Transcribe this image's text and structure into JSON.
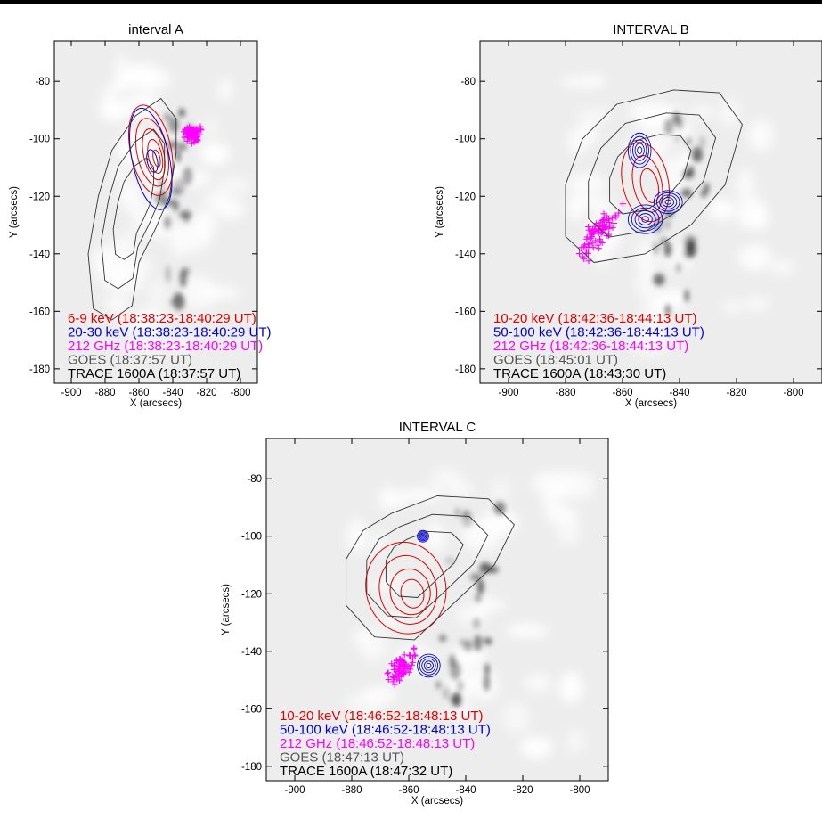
{
  "colors": {
    "red": "#e00000",
    "blue": "#0000d8",
    "magenta": "#ff00ff",
    "goes_gray": "#555555",
    "trace_black": "#000000"
  },
  "chart_data": [
    {
      "type": "contour-map",
      "title": "interval A",
      "xlabel": "X (arcsecs)",
      "ylabel": "Y (arcsecs)",
      "xlim": [
        -910,
        -790
      ],
      "ylim": [
        -185,
        -66
      ],
      "xticks": [
        -900,
        -880,
        -860,
        -840,
        -820,
        -800
      ],
      "yticks": [
        -80,
        -100,
        -120,
        -140,
        -160,
        -180
      ],
      "legend": [
        {
          "text": "6-9 keV (18:38:23-18:40:29 UT)",
          "color": "red"
        },
        {
          "text": "20-30 keV (18:38:23-18:40:29 UT)",
          "color": "blue"
        },
        {
          "text": "212 GHz (18:38:23-18:40:29 UT)",
          "color": "magenta"
        },
        {
          "text": "GOES (18:37:57 UT)",
          "color": "goes_gray"
        },
        {
          "text": "TRACE 1600A (18:37:57 UT)",
          "color": "trace_black"
        }
      ],
      "series": [
        {
          "name": "6-9 keV",
          "color": "red",
          "kind": "contours",
          "center": [
            -853,
            -104
          ],
          "radii": [
            [
              12,
              16
            ],
            [
              9,
              12
            ],
            [
              6,
              9
            ],
            [
              4,
              6
            ],
            [
              2,
              3
            ]
          ]
        },
        {
          "name": "20-30 keV",
          "color": "blue",
          "kind": "contours",
          "center": [
            -853,
            -107
          ],
          "radii": [
            [
              11,
              18
            ],
            [
              3,
              4
            ]
          ]
        },
        {
          "name": "212 GHz",
          "color": "magenta",
          "kind": "scatter",
          "center": [
            -828,
            -98
          ],
          "spread": [
            8,
            4
          ],
          "n": 90
        },
        {
          "name": "GOES",
          "color": "goes_gray",
          "kind": "contours",
          "outline": [
            [
              -862,
              -92
            ],
            [
              -847,
              -86
            ],
            [
              -838,
              -93
            ],
            [
              -838,
              -105
            ],
            [
              -842,
              -120
            ],
            [
              -850,
              -131
            ],
            [
              -860,
              -143
            ],
            [
              -864,
              -158
            ],
            [
              -876,
              -163
            ],
            [
              -887,
              -159
            ],
            [
              -890,
              -140
            ],
            [
              -884,
              -120
            ],
            [
              -876,
              -104
            ]
          ]
        },
        {
          "name": "TRACE 1600A",
          "color": "trace_black",
          "kind": "image"
        }
      ]
    },
    {
      "type": "contour-map",
      "title": "INTERVAL B",
      "xlabel": "X (arcsecs)",
      "ylabel": "Y (arcsecs)",
      "xlim": [
        -910,
        -790
      ],
      "ylim": [
        -185,
        -66
      ],
      "xticks": [
        -900,
        -880,
        -860,
        -840,
        -820,
        -800
      ],
      "yticks": [
        -80,
        -100,
        -120,
        -140,
        -160,
        -180
      ],
      "legend": [
        {
          "text": "10-20 keV (18:42:36-18:44:13 UT)",
          "color": "red"
        },
        {
          "text": "50-100 keV (18:42:36-18:44:13 UT)",
          "color": "blue"
        },
        {
          "text": "212 GHz (18:42:36-18:44:13 UT)",
          "color": "magenta"
        },
        {
          "text": "GOES (18:45:01 UT)",
          "color": "goes_gray"
        },
        {
          "text": "TRACE 1600A (18:43:30 UT)",
          "color": "trace_black"
        }
      ],
      "series": [
        {
          "name": "10-20 keV",
          "color": "red",
          "kind": "contours",
          "center": [
            -852,
            -115
          ],
          "radii": [
            [
              8,
              14
            ],
            [
              5,
              10
            ],
            [
              3,
              6
            ]
          ]
        },
        {
          "name": "50-100 keV",
          "color": "blue",
          "kind": "contours",
          "sources": [
            [
              -854,
              -104,
              4,
              6
            ],
            [
              -852,
              -128,
              6,
              5
            ],
            [
              -844,
              -122,
              5,
              4
            ]
          ]
        },
        {
          "name": "212 GHz",
          "color": "magenta",
          "kind": "scatter",
          "center": [
            -868,
            -133
          ],
          "spread": [
            10,
            9
          ],
          "n": 75
        },
        {
          "name": "GOES",
          "color": "goes_gray",
          "kind": "contours",
          "outline": [
            [
              -862,
              -88
            ],
            [
              -842,
              -83
            ],
            [
              -826,
              -84
            ],
            [
              -818,
              -95
            ],
            [
              -824,
              -116
            ],
            [
              -836,
              -130
            ],
            [
              -852,
              -140
            ],
            [
              -870,
              -143
            ],
            [
              -880,
              -134
            ],
            [
              -880,
              -116
            ],
            [
              -874,
              -100
            ]
          ]
        },
        {
          "name": "TRACE 1600A",
          "color": "trace_black",
          "kind": "image"
        }
      ]
    },
    {
      "type": "contour-map",
      "title": "INTERVAL C",
      "xlabel": "X (arcsecs)",
      "ylabel": "Y (arcsecs)",
      "xlim": [
        -910,
        -790
      ],
      "ylim": [
        -185,
        -66
      ],
      "xticks": [
        -900,
        -880,
        -860,
        -840,
        -820,
        -800
      ],
      "yticks": [
        -80,
        -100,
        -120,
        -140,
        -160,
        -180
      ],
      "legend": [
        {
          "text": "10-20 keV (18:46:52-18:48:13 UT)",
          "color": "red"
        },
        {
          "text": "50-100 keV (18:46:52-18:48:13 UT)",
          "color": "blue"
        },
        {
          "text": "212 GHz (18:46:52-18:48:13 UT)",
          "color": "magenta"
        },
        {
          "text": "GOES (18:47:13 UT)",
          "color": "goes_gray"
        },
        {
          "text": "TRACE 1600A (18:47:32 UT)",
          "color": "trace_black"
        }
      ],
      "series": [
        {
          "name": "10-20 keV",
          "color": "red",
          "kind": "contours",
          "center": [
            -861,
            -118
          ],
          "radii": [
            [
              14,
              16
            ],
            [
              10,
              12
            ],
            [
              7,
              8
            ],
            [
              4,
              5
            ]
          ]
        },
        {
          "name": "50-100 keV",
          "color": "blue",
          "kind": "contours",
          "sources": [
            [
              -855,
              -100,
              2,
              2
            ],
            [
              -853,
              -145,
              4,
              4
            ]
          ]
        },
        {
          "name": "212 GHz",
          "color": "magenta",
          "kind": "scatter",
          "center": [
            -862,
            -145
          ],
          "spread": [
            7,
            6
          ],
          "n": 70
        },
        {
          "name": "GOES",
          "color": "goes_gray",
          "kind": "contours",
          "outline": [
            [
              -866,
              -92
            ],
            [
              -850,
              -86
            ],
            [
              -832,
              -87
            ],
            [
              -823,
              -96
            ],
            [
              -830,
              -110
            ],
            [
              -846,
              -125
            ],
            [
              -858,
              -136
            ],
            [
              -872,
              -135
            ],
            [
              -882,
              -124
            ],
            [
              -882,
              -108
            ],
            [
              -876,
              -98
            ]
          ]
        },
        {
          "name": "TRACE 1600A",
          "color": "trace_black",
          "kind": "image"
        }
      ]
    }
  ]
}
